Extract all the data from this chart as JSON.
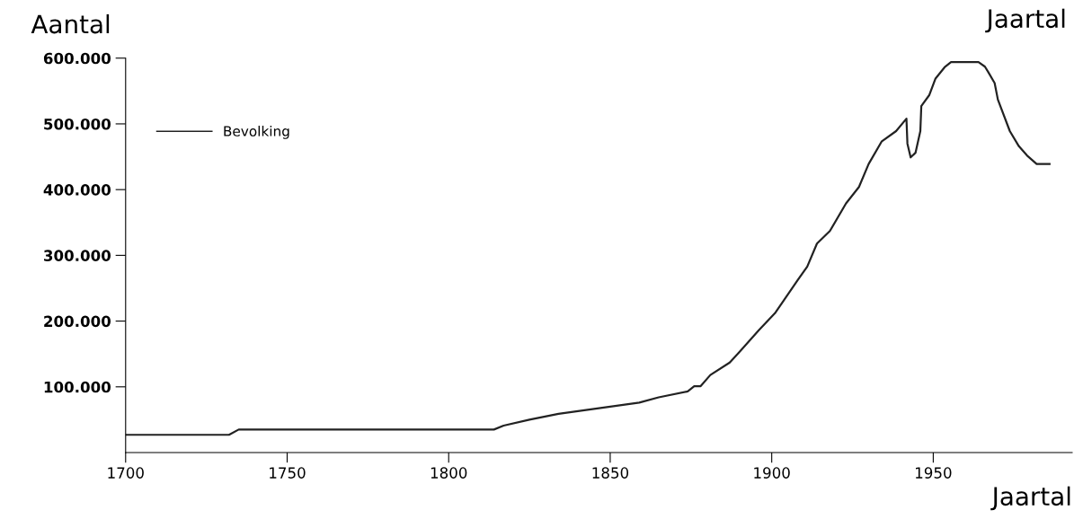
{
  "chart_data": {
    "type": "line",
    "xlabel": "Jaartal",
    "ylabel": "Aantal",
    "annotations": [
      "Jaartal"
    ],
    "x": [
      1700,
      1732,
      1735,
      1814,
      1817,
      1825,
      1834,
      1846,
      1859,
      1865,
      1874,
      1876,
      1878,
      1881,
      1887,
      1890,
      1896,
      1901,
      1908,
      1911,
      1914,
      1918,
      1923,
      1927,
      1930,
      1934,
      1938.5,
      1941.7,
      1942,
      1943,
      1944.5,
      1946,
      1946.3,
      1948.8,
      1950.7,
      1953.5,
      1955.5,
      1964,
      1966,
      1967,
      1969,
      1970,
      1973.7,
      1976.5,
      1979,
      1982,
      1986
    ],
    "series": [
      {
        "name": "Bevolking",
        "color": "#222222",
        "values": [
          27000,
          27000,
          35000,
          35000,
          41000,
          50000,
          59000,
          67000,
          76000,
          84000,
          93000,
          101000,
          101000,
          118000,
          137000,
          153000,
          186000,
          212000,
          262000,
          283000,
          318000,
          337000,
          379000,
          404000,
          439000,
          473000,
          489000,
          508000,
          470000,
          449000,
          456000,
          489000,
          527000,
          544000,
          569000,
          586000,
          594000,
          594000,
          587000,
          579000,
          562000,
          537000,
          489000,
          466000,
          452000,
          439000,
          439000
        ]
      }
    ],
    "xlim": [
      1700,
      1993
    ],
    "xticks": [
      1700,
      1750,
      1800,
      1850,
      1900,
      1950
    ],
    "ylim": [
      0,
      600000
    ],
    "yticks": [
      {
        "value": 100000,
        "label": "100.000"
      },
      {
        "value": 200000,
        "label": "200.000"
      },
      {
        "value": 300000,
        "label": "300.000"
      },
      {
        "value": 400000,
        "label": "400.000"
      },
      {
        "value": 500000,
        "label": "500.000"
      },
      {
        "value": 600000,
        "label": "600.000"
      }
    ],
    "grid": false,
    "legend": "top left",
    "marker": "none",
    "line_style": "solid"
  }
}
